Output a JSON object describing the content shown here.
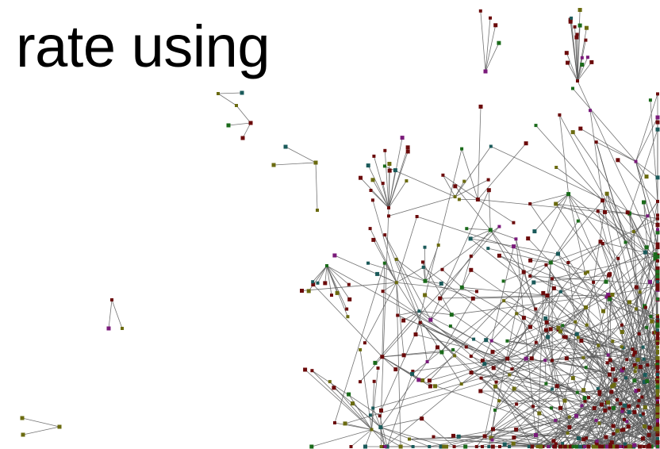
{
  "slide": {
    "heading": "rate using"
  },
  "network": {
    "edge_color": "#5a5a5a",
    "node_colors": {
      "dark_red": "#6b0a0a",
      "olive": "#6b6b10",
      "purple": "#7a1a7a",
      "green": "#1a6a1a",
      "teal": "#1a5a5a"
    }
  }
}
